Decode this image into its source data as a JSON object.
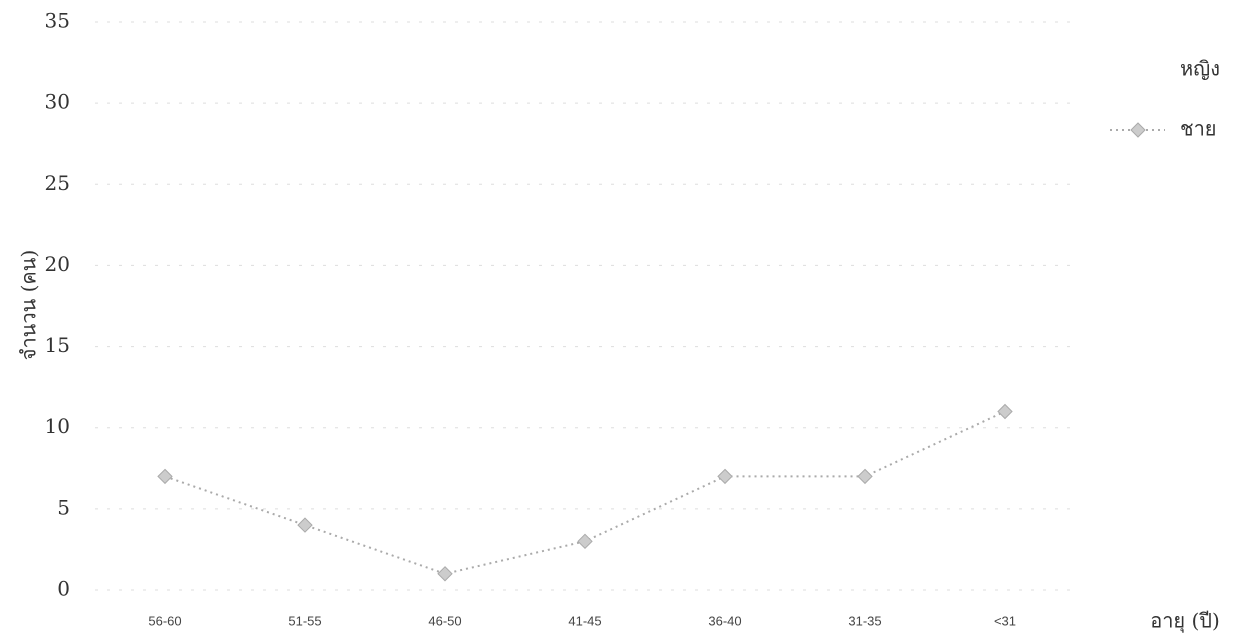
{
  "chart_data": {
    "type": "line",
    "y_label": "จำนวน (คน)",
    "x_label": "อายุ (ปี)",
    "categories": [
      "56-60",
      "51-55",
      "46-50",
      "41-45",
      "36-40",
      "31-35",
      "<31"
    ],
    "series": [
      {
        "name": "หญิง",
        "color": "#ffffff",
        "values": [
          null,
          null,
          null,
          null,
          null,
          null,
          null
        ]
      },
      {
        "name": "ชาย",
        "color": "#aaaaaa",
        "values": [
          7,
          4,
          1,
          3,
          7,
          7,
          11
        ]
      }
    ],
    "ylim": [
      0,
      35
    ],
    "yticks": [
      0,
      5,
      10,
      15,
      20,
      25,
      30,
      35
    ],
    "grid": true,
    "legend": "right"
  }
}
